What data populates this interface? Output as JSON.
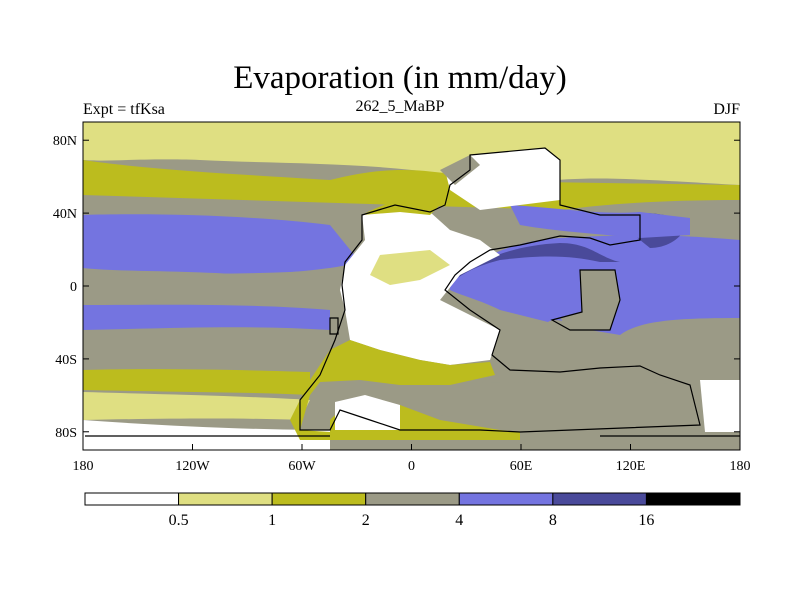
{
  "title": "Evaporation (in mm/day)",
  "left_string": "Expt = tfKsa",
  "center_string": "262_5_MaBP",
  "right_string": "DJF",
  "colors": {
    "c0": "#ffffff",
    "c1": "#dfdf82",
    "c2": "#bcbc1e",
    "c3": "#9b9a86",
    "c4": "#7474e0",
    "c5": "#4a4a9a",
    "c6": "#000000",
    "coast": "#000000"
  },
  "chart_data": {
    "type": "filled-contour-map",
    "variable": "Evaporation",
    "units": "mm/day",
    "season": "DJF",
    "x_ticks": [
      "180",
      "120W",
      "60W",
      "0",
      "60E",
      "120E",
      "180"
    ],
    "x_values": [
      -180,
      -120,
      -60,
      0,
      60,
      120,
      180
    ],
    "y_ticks": [
      "80N",
      "40N",
      "0",
      "40S",
      "80S"
    ],
    "y_values": [
      80,
      40,
      0,
      -40,
      -80
    ],
    "xlim": [
      -180,
      180
    ],
    "ylim": [
      -90,
      90
    ],
    "colorbar": {
      "levels": [
        "0.5",
        "1",
        "2",
        "4",
        "8",
        "16"
      ],
      "level_values": [
        0.5,
        1,
        2,
        4,
        8,
        16
      ]
    }
  }
}
